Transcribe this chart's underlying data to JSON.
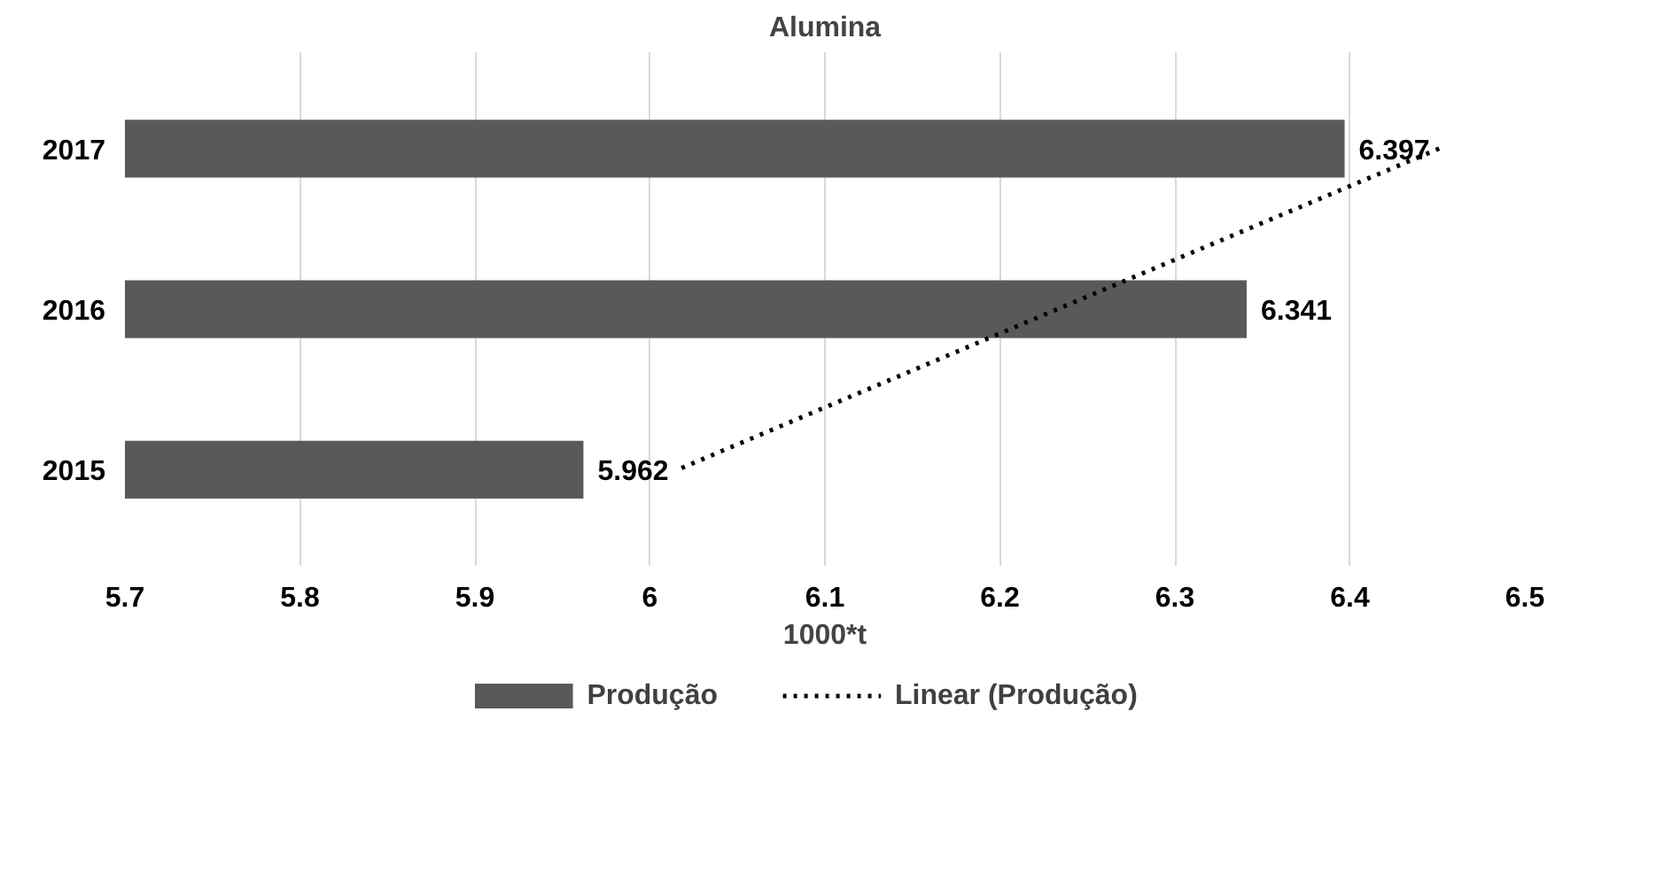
{
  "chart_data": {
    "type": "bar",
    "orientation": "horizontal",
    "title": "Alumina",
    "xlabel": "1000*t",
    "categories": [
      "2017",
      "2016",
      "2015"
    ],
    "series": [
      {
        "name": "Produção",
        "color": "#595959",
        "values": [
          6.397,
          6.341,
          5.962
        ],
        "value_labels": [
          "6.397",
          "6.341",
          "5.962"
        ]
      },
      {
        "name": "Linear (Produção)",
        "type": "line",
        "color": "#000000",
        "line_style": "dotted",
        "values": [
          6.451,
          6.233,
          6.016
        ]
      }
    ],
    "xlim": [
      5.7,
      6.5
    ],
    "xticks": [
      5.7,
      5.8,
      5.9,
      6,
      6.1,
      6.2,
      6.3,
      6.4,
      6.5
    ],
    "grid": "x",
    "legend": "bottom"
  }
}
